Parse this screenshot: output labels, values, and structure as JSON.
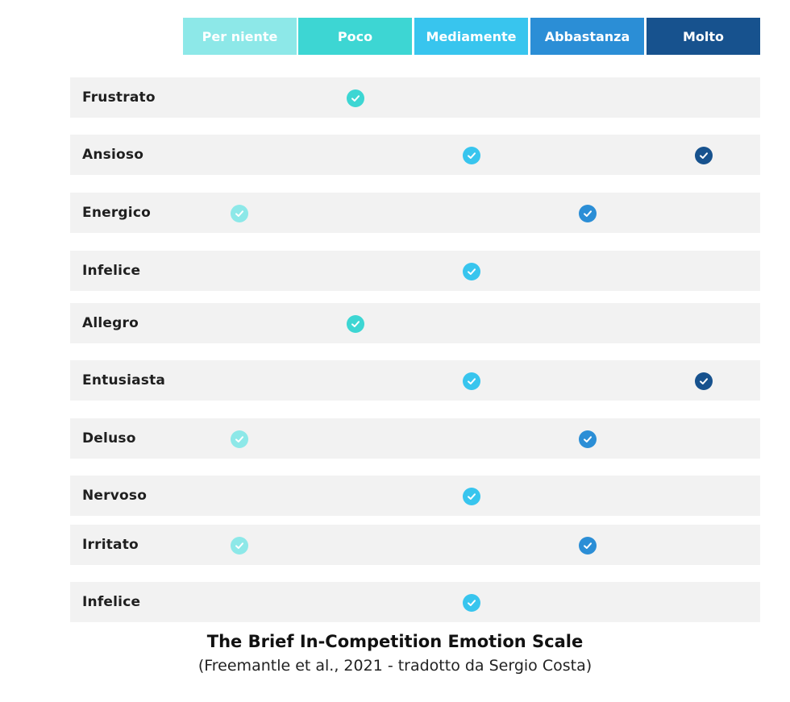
{
  "scale": {
    "headers": [
      {
        "label": "Per niente",
        "color": "#8de8e8"
      },
      {
        "label": "Poco",
        "color": "#3dd6d3"
      },
      {
        "label": "Mediamente",
        "color": "#38c5ee"
      },
      {
        "label": "Abbastanza",
        "color": "#2b8ed6"
      },
      {
        "label": "Molto",
        "color": "#17528e"
      }
    ],
    "rows": [
      {
        "label": "Frustrato",
        "checks": [
          1
        ]
      },
      {
        "label": "Ansioso",
        "checks": [
          2,
          4
        ]
      },
      {
        "label": "Energico",
        "checks": [
          0,
          3
        ]
      },
      {
        "label": "Infelice",
        "checks": [
          2
        ]
      },
      {
        "label": "Allegro",
        "checks": [
          1
        ]
      },
      {
        "label": "Entusiasta",
        "checks": [
          2,
          4
        ]
      },
      {
        "label": "Deluso",
        "checks": [
          0,
          3
        ]
      },
      {
        "label": "Nervoso",
        "checks": [
          2
        ]
      },
      {
        "label": "Irritato",
        "checks": [
          0,
          3
        ]
      },
      {
        "label": "Infelice",
        "checks": [
          2
        ]
      }
    ]
  },
  "caption": {
    "title": "The Brief In-Competition Emotion Scale",
    "subtitle": "(Freemantle et al., 2021 - tradotto da Sergio Costa)"
  }
}
